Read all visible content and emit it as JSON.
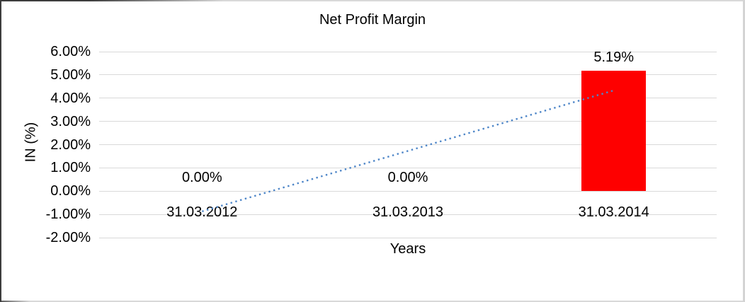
{
  "chart_data": {
    "type": "bar",
    "title": "Net Profit Margin",
    "xlabel": "Years",
    "ylabel": "IN (%)",
    "categories": [
      "31.03.2012",
      "31.03.2013",
      "31.03.2014"
    ],
    "values": [
      0,
      0,
      5.19
    ],
    "data_labels": [
      "0.00%",
      "0.00%",
      "5.19%"
    ],
    "y_ticks": [
      {
        "label": "6.00%",
        "value": 6
      },
      {
        "label": "5.00%",
        "value": 5
      },
      {
        "label": "4.00%",
        "value": 4
      },
      {
        "label": "3.00%",
        "value": 3
      },
      {
        "label": "2.00%",
        "value": 2
      },
      {
        "label": "1.00%",
        "value": 1
      },
      {
        "label": "0.00%",
        "value": 0
      },
      {
        "label": "-1.00%",
        "value": -1
      },
      {
        "label": "-2.00%",
        "value": -2
      }
    ],
    "ylim": [
      -2,
      6
    ],
    "grid": true,
    "legend": false,
    "colors": {
      "bar": "#fe0000",
      "trendline": "#4e86c8",
      "gridline": "#d9d9d9",
      "text": "#000000"
    },
    "trendline": {
      "type": "linear",
      "style": "dotted",
      "start_value": -0.87,
      "end_value": 4.33
    }
  }
}
